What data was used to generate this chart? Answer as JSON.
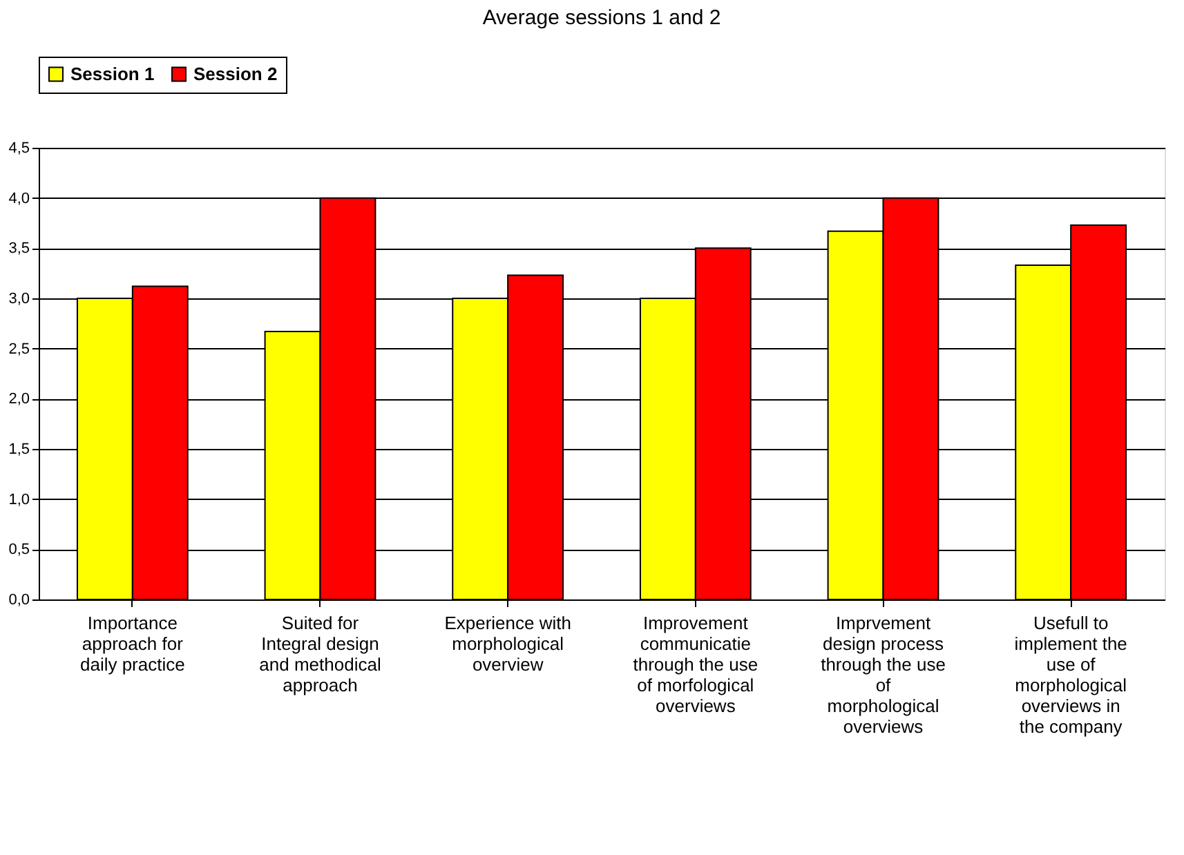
{
  "chart_data": {
    "type": "bar",
    "title": "Average sessions 1 and 2",
    "categories": [
      "Importance approach for daily practice",
      "Suited for Integral design and methodical approach",
      "Experience with morphological overview",
      "Improvement communicatie through the use of morfological overviews",
      "Imprvement design process through the use of morphological overviews",
      "Usefull to implement the use of morphological overviews in the company"
    ],
    "series": [
      {
        "name": "Session 1",
        "color": "#ffff00",
        "values": [
          3.0,
          2.67,
          3.0,
          3.0,
          3.67,
          3.33
        ]
      },
      {
        "name": "Session 2",
        "color": "#ff0000",
        "values": [
          3.12,
          4.0,
          3.23,
          3.5,
          4.0,
          3.73
        ]
      }
    ],
    "ylim": [
      0,
      4.5
    ],
    "yticks": [
      {
        "value": 0,
        "label": "0,0"
      },
      {
        "value": 0.5,
        "label": "0,5"
      },
      {
        "value": 1,
        "label": "1,0"
      },
      {
        "value": 1.5,
        "label": "1,5"
      },
      {
        "value": 2,
        "label": "2,0"
      },
      {
        "value": 2.5,
        "label": "2,5"
      },
      {
        "value": 3,
        "label": "3,0"
      },
      {
        "value": 3.5,
        "label": "3,5"
      },
      {
        "value": 4,
        "label": "4,0"
      },
      {
        "value": 4.5,
        "label": "4,5"
      }
    ],
    "grid": "y",
    "legend": "top"
  }
}
